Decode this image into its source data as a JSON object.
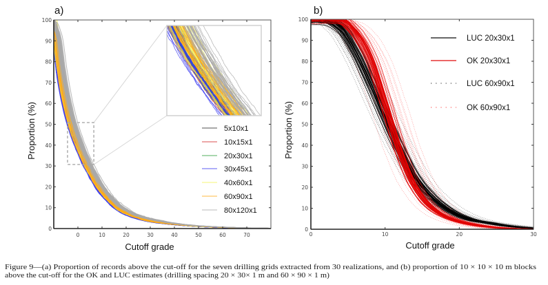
{
  "figure": {
    "caption_line1": "Figure 9—(a) Proportion of records above the cut-off for the seven drilling grids extracted from 30 realizations, and (b) proportion of 10 × 10 × 10 m blocks",
    "caption_line2": "above the cut-off for the OK and LUC estimates (drilling spacing 20 × 30× 1 m and 60 × 90 × 1 m)"
  },
  "chart_data": [
    {
      "type": "line",
      "title": "a)",
      "xlabel": "Cutoff grade",
      "ylabel": "Proportion (%)",
      "xlim": [
        -10,
        80
      ],
      "ylim": [
        0,
        100
      ],
      "xticks": [
        0,
        10,
        20,
        30,
        40,
        50,
        60,
        70
      ],
      "yticks": [
        0,
        10,
        20,
        30,
        40,
        50,
        60,
        70,
        80,
        90,
        100
      ],
      "grid": false,
      "legend_position": "center-right",
      "realizations": 30,
      "zoom_box": {
        "xlim": [
          -4.3,
          6.6
        ],
        "ylim": [
          30.7,
          50.8
        ]
      },
      "inset_position": "top-right",
      "x": [
        -10,
        -8,
        -6,
        -4,
        -2,
        0,
        2,
        4,
        6,
        8,
        10,
        15,
        20,
        25,
        30,
        40,
        50,
        60,
        70,
        80
      ],
      "series": [
        {
          "name": "5x10x1",
          "color": "#2b2b2b",
          "style": "solid",
          "spread": 0.25,
          "y": [
            97,
            75.4,
            62.4,
            52.4,
            45.0,
            38.7,
            33.4,
            28.5,
            24.3,
            20.0,
            16.8,
            10.5,
            6.8,
            4.8,
            3.4,
            1.9,
            1.0,
            0.5,
            0.25,
            0.1
          ]
        },
        {
          "name": "10x15x1",
          "color": "#d42a2a",
          "style": "solid",
          "spread": 0.3,
          "y": [
            97,
            75.8,
            62.6,
            52.6,
            45.1,
            38.8,
            33.5,
            28.6,
            24.4,
            20.1,
            16.9,
            10.6,
            6.9,
            4.8,
            3.4,
            1.9,
            1.0,
            0.5,
            0.25,
            0.1
          ]
        },
        {
          "name": "20x30x1",
          "color": "#2e9e3a",
          "style": "solid",
          "spread": 0.35,
          "y": [
            97,
            75.6,
            62.5,
            52.5,
            45.1,
            38.8,
            33.4,
            28.6,
            24.3,
            20.1,
            16.9,
            10.6,
            6.9,
            4.8,
            3.4,
            1.9,
            1.0,
            0.5,
            0.25,
            0.1
          ]
        },
        {
          "name": "30x45x1",
          "color": "#3c3cf0",
          "style": "solid",
          "spread": 0.45,
          "y": [
            96,
            73.1,
            60.5,
            51.0,
            44.0,
            37.9,
            32.6,
            27.9,
            23.6,
            19.6,
            16.5,
            10.3,
            6.7,
            4.7,
            3.3,
            1.9,
            1.0,
            0.5,
            0.25,
            0.1
          ]
        },
        {
          "name": "40x60x1",
          "color": "#f2f25a",
          "style": "solid",
          "spread": 0.5,
          "y": [
            98,
            81.0,
            66.5,
            55.7,
            47.3,
            40.7,
            35.3,
            30.0,
            25.7,
            21.5,
            18.3,
            11.6,
            7.5,
            5.3,
            3.6,
            2.1,
            1.1,
            0.6,
            0.3,
            0.1
          ]
        },
        {
          "name": "60x90x1",
          "color": "#ffab1a",
          "style": "solid",
          "spread": 0.6,
          "y": [
            98,
            86.0,
            68.2,
            57.1,
            48.3,
            41.7,
            36.1,
            30.8,
            26.4,
            22.1,
            18.7,
            12.0,
            7.8,
            5.4,
            3.7,
            2.1,
            1.2,
            0.6,
            0.3,
            0.15
          ]
        },
        {
          "name": "80x120x1",
          "color": "#a9a9a9",
          "style": "solid",
          "spread": 0.7,
          "y": [
            99,
            92.0,
            75.4,
            62.4,
            52.4,
            45.0,
            38.7,
            33.4,
            28.5,
            24.3,
            20.6,
            13.3,
            8.9,
            6.2,
            4.6,
            2.5,
            1.3,
            0.7,
            0.35,
            0.15
          ]
        }
      ]
    },
    {
      "type": "line",
      "title": "b)",
      "xlabel": "Cutoff grade",
      "ylabel": "Proportion (%)",
      "xlim": [
        0,
        30
      ],
      "ylim": [
        0,
        100
      ],
      "xticks": [
        0,
        10,
        20,
        30
      ],
      "yticks": [
        0,
        10,
        20,
        30,
        40,
        50,
        60,
        70,
        80,
        90,
        100
      ],
      "grid": false,
      "legend_position": "top-right",
      "realizations": 30,
      "x": [
        0,
        2,
        4,
        6,
        8,
        10,
        12,
        14,
        16,
        18,
        20,
        22,
        24,
        26,
        28,
        30
      ],
      "series": [
        {
          "name": "LUC 20x30x1",
          "color": "#000000",
          "style": "solid",
          "spread": 0.4,
          "y": [
            100,
            99.8,
            96,
            85,
            70,
            53.5,
            38,
            25,
            16.5,
            10.5,
            6.5,
            4.2,
            3.0,
            1.8,
            1.0,
            0.5
          ]
        },
        {
          "name": "OK 20x30x1",
          "color": "#e00000",
          "style": "solid",
          "spread": 0.35,
          "y": [
            100,
            100,
            99.5,
            94,
            82,
            61,
            38,
            21,
            11.5,
            6.5,
            3.8,
            2.2,
            1.2,
            0.6,
            0.3,
            0.1
          ]
        },
        {
          "name": "LUC 60x90x1",
          "color": "#000000",
          "style": "dotted",
          "spread": 0.8,
          "y": [
            100,
            99.5,
            95,
            84,
            69,
            53,
            38.5,
            26,
            17,
            11,
            7,
            4.5,
            3.0,
            2.0,
            1.2,
            0.6
          ]
        },
        {
          "name": "OK 60x90x1",
          "color": "#ff2020",
          "style": "dotted",
          "spread": 1.0,
          "y": [
            100,
            100,
            99,
            93,
            81,
            61,
            39,
            22,
            12,
            6.5,
            3.5,
            1.8,
            0.9,
            0.4,
            0.2,
            0.1
          ]
        }
      ],
      "draw_order": [
        2,
        3,
        0,
        1
      ]
    }
  ]
}
